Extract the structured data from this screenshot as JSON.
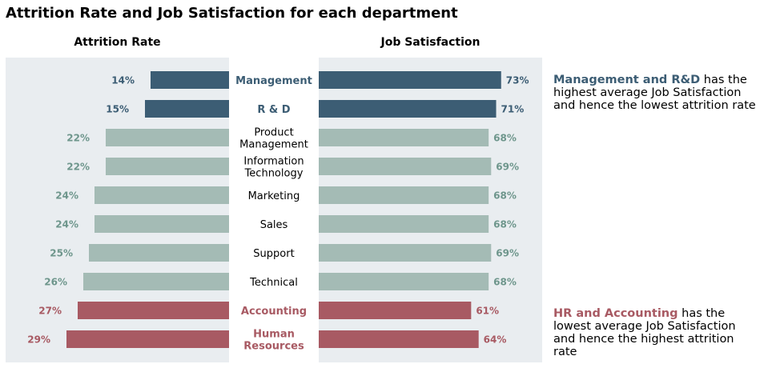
{
  "chart_data": {
    "type": "bar",
    "title": "Attrition Rate and Job Satisfaction for each department",
    "categories": [
      {
        "name": "Management",
        "group": "high"
      },
      {
        "name": "R & D",
        "group": "high"
      },
      {
        "name": "Product\nManagement",
        "group": "neutral"
      },
      {
        "name": "Information\nTechnology",
        "group": "neutral"
      },
      {
        "name": "Marketing",
        "group": "neutral"
      },
      {
        "name": "Sales",
        "group": "neutral"
      },
      {
        "name": "Support",
        "group": "neutral"
      },
      {
        "name": "Technical",
        "group": "neutral"
      },
      {
        "name": "Accounting",
        "group": "low"
      },
      {
        "name": "Human\nResources",
        "group": "low"
      }
    ],
    "series": [
      {
        "name": "Attrition Rate",
        "values": [
          14,
          15,
          22,
          22,
          24,
          24,
          25,
          26,
          27,
          29
        ],
        "labels": [
          "14%",
          "15%",
          "22%",
          "22%",
          "24%",
          "24%",
          "25%",
          "26%",
          "27%",
          "29%"
        ]
      },
      {
        "name": "Job Satisfaction",
        "values": [
          73,
          71,
          68,
          69,
          68,
          68,
          69,
          68,
          61,
          64
        ],
        "labels": [
          "73%",
          "71%",
          "68%",
          "69%",
          "68%",
          "68%",
          "69%",
          "68%",
          "61%",
          "64%"
        ]
      }
    ],
    "panel_background": "#e9edf0",
    "colors": {
      "high": "#3c5d74",
      "neutral": "#a4bbb5",
      "low": "#a85a63",
      "neutral_label": "#6e968c",
      "neutral_category": "#000000"
    },
    "grid": false
  },
  "annotations": [
    {
      "highlight": "Management and R&D",
      "text": "has the highest average Job Satisfaction and hence the lowest attrition rate",
      "color": "#3c5d74"
    },
    {
      "highlight": "HR and Accounting",
      "text": "has the lowest average Job Satisfaction and hence the highest attrition rate",
      "color": "#a85a63"
    }
  ]
}
